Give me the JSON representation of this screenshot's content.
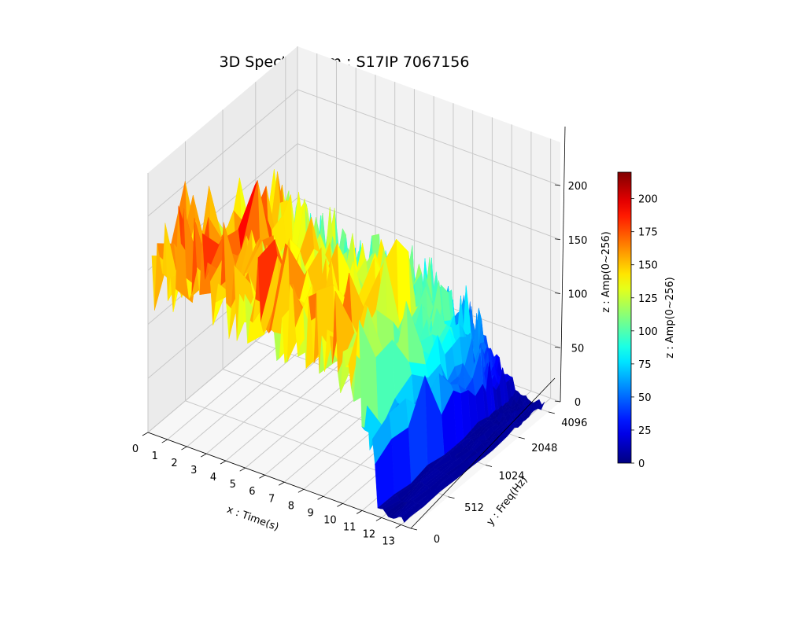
{
  "chart_data": {
    "type": "surface3d",
    "title": "3D Spectrogram : S17IP 7067156",
    "xlabel": "x : Time(s)",
    "ylabel": "y : Freq(Hz)",
    "zlabel": "z : Amp(0~256)",
    "colorbar_label": "z : Amp(0~256)",
    "colormap": "jet",
    "x_ticks": [
      "0",
      "1",
      "2",
      "3",
      "4",
      "5",
      "6",
      "7",
      "8",
      "9",
      "10",
      "11",
      "12",
      "13"
    ],
    "y_ticks": [
      "0",
      "512",
      "1024",
      "2048",
      "4096"
    ],
    "z_ticks": [
      "0",
      "50",
      "100",
      "150",
      "200"
    ],
    "colorbar_ticks": [
      "0",
      "25",
      "50",
      "75",
      "100",
      "125",
      "150",
      "175",
      "200"
    ],
    "xlim": [
      0,
      13.5
    ],
    "ylim": [
      0,
      4500
    ],
    "zlim": [
      0,
      240
    ],
    "color_range": [
      0,
      220
    ],
    "time_extent": [
      0.2,
      13.3
    ],
    "energy_end_time": 11.5,
    "grid": true,
    "series": [
      {
        "x": [
          0.5,
          1.5,
          2.5,
          3.5,
          4.5,
          5.5,
          6.5,
          7.5,
          8.5,
          9.5,
          10.5,
          11.5,
          12.5,
          13.3
        ],
        "values": [
          150,
          160,
          175,
          155,
          150,
          145,
          140,
          150,
          150,
          140,
          125,
          95,
          5,
          3
        ]
      }
    ]
  }
}
